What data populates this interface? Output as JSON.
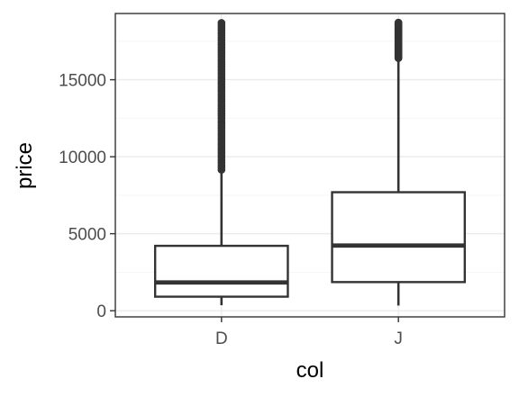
{
  "chart_data": {
    "type": "boxplot",
    "title": "",
    "xlabel": "col",
    "ylabel": "price",
    "categories": [
      "D",
      "J"
    ],
    "ylim": [
      -400,
      19300
    ],
    "yticks": [
      0,
      5000,
      10000,
      15000
    ],
    "ytick_labels": [
      "0",
      "5000",
      "10000",
      "15000"
    ],
    "grid": true,
    "boxes": [
      {
        "category": "D",
        "whisker_low": 357,
        "q1": 911,
        "median": 1838,
        "q3": 4214,
        "whisker_high": 9150,
        "outliers_range": [
          9150,
          18690
        ]
      },
      {
        "category": "J",
        "whisker_low": 335,
        "q1": 1860,
        "median": 4234,
        "q3": 7695,
        "whisker_high": 16400,
        "outliers_range": [
          16400,
          18710
        ]
      }
    ],
    "colors": {
      "box_stroke": "#333333",
      "box_fill": "#ffffff",
      "grid_major": "#ebebeb",
      "grid_minor": "#f5f5f5",
      "panel_border": "#333333"
    }
  }
}
